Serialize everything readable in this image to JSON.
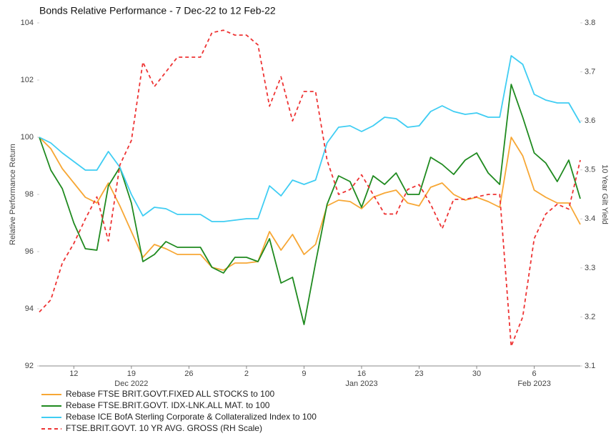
{
  "chart_data": {
    "type": "line",
    "title": "Bonds Relative Performance - 7 Dec-22 to 12 Feb-22",
    "y_label": "Relative Performance Return",
    "y2_label": "10 Year Gilt Yield",
    "x": [
      0,
      1,
      2,
      3,
      4,
      5,
      6,
      7,
      8,
      9,
      10,
      11,
      12,
      13,
      14,
      15,
      16,
      17,
      18,
      19,
      20,
      21,
      22,
      23,
      24,
      25,
      26,
      27,
      28,
      29,
      30,
      31,
      32,
      33,
      34,
      35,
      36,
      37,
      38,
      39,
      40,
      41,
      42,
      43,
      44,
      45,
      46,
      47
    ],
    "xlim": [
      0,
      47
    ],
    "xticks": [
      {
        "value": 3,
        "label": "12"
      },
      {
        "value": 8,
        "label": "19"
      },
      {
        "value": 13,
        "label": "26"
      },
      {
        "value": 18,
        "label": "2"
      },
      {
        "value": 23,
        "label": "9"
      },
      {
        "value": 28,
        "label": "16"
      },
      {
        "value": 33,
        "label": "23"
      },
      {
        "value": 38,
        "label": "30"
      },
      {
        "value": 43,
        "label": "6"
      }
    ],
    "x_period_labels": [
      {
        "value": 8,
        "label": "Dec 2022"
      },
      {
        "value": 28,
        "label": "Jan 2023"
      },
      {
        "value": 43,
        "label": "Feb 2023"
      }
    ],
    "ylim": [
      92,
      104
    ],
    "yticks": [
      92,
      94,
      96,
      98,
      100,
      102,
      104
    ],
    "y2lim": [
      3.1,
      3.8
    ],
    "y2ticks": [
      3.1,
      3.2,
      3.3,
      3.4,
      3.5,
      3.6,
      3.7,
      3.8
    ],
    "grid": false,
    "legend": "bottom-left",
    "series": [
      {
        "name": "Rebase FTSE BRIT.GOVT.FIXED ALL STOCKS to 100",
        "color": "#f7a735",
        "values": [
          100,
          99.6,
          98.9,
          98.4,
          97.9,
          97.7,
          98.4,
          97.6,
          96.7,
          95.8,
          96.25,
          96.1,
          95.9,
          95.9,
          95.9,
          95.45,
          95.35,
          95.6,
          95.6,
          95.65,
          96.7,
          96.05,
          96.6,
          95.9,
          96.25,
          97.6,
          97.8,
          97.75,
          97.5,
          97.9,
          98.05,
          98.15,
          97.7,
          97.6,
          98.25,
          98.4,
          98.0,
          97.8,
          97.9,
          97.75,
          97.55,
          100.0,
          99.35,
          98.15,
          97.9,
          97.7,
          97.7,
          96.95
        ]
      },
      {
        "name": "Rebase FTSE.BRIT.GOVT. IDX-LNK.ALL MAT. to 100",
        "color": "#1f8a1f",
        "values": [
          100,
          98.85,
          98.2,
          97.0,
          96.1,
          96.05,
          98.3,
          98.95,
          97.7,
          95.65,
          95.9,
          96.35,
          96.15,
          96.15,
          96.15,
          95.45,
          95.25,
          95.8,
          95.8,
          95.65,
          96.45,
          94.9,
          95.1,
          93.45,
          95.6,
          97.65,
          98.65,
          98.45,
          97.55,
          98.65,
          98.35,
          98.75,
          98.0,
          98.0,
          99.3,
          99.05,
          98.7,
          99.2,
          99.45,
          98.75,
          98.35,
          101.85,
          100.7,
          99.45,
          99.1,
          98.45,
          99.2,
          97.85
        ]
      },
      {
        "name": "Rebase ICE BofA Sterling Corporate & Collateralized Index to 100",
        "color": "#3fcdf3",
        "values": [
          100,
          99.8,
          99.45,
          99.15,
          98.85,
          98.85,
          99.5,
          98.95,
          98.0,
          97.25,
          97.55,
          97.5,
          97.3,
          97.3,
          97.3,
          97.05,
          97.05,
          97.1,
          97.15,
          97.15,
          98.3,
          97.95,
          98.5,
          98.35,
          98.5,
          99.8,
          100.35,
          100.4,
          100.2,
          100.4,
          100.7,
          100.65,
          100.35,
          100.4,
          100.9,
          101.1,
          100.9,
          100.8,
          100.85,
          100.7,
          100.7,
          102.85,
          102.55,
          101.5,
          101.3,
          101.2,
          101.2,
          100.5
        ]
      },
      {
        "name": "FTSE.BRIT.GOVT. 10 YR AVG. GROSS (RH Scale)",
        "color": "#ee3333",
        "axis": "y2",
        "dashed": true,
        "values": [
          3.21,
          3.235,
          3.31,
          3.35,
          3.4,
          3.445,
          3.355,
          3.51,
          3.56,
          3.72,
          3.67,
          3.7,
          3.73,
          3.73,
          3.73,
          3.78,
          3.785,
          3.775,
          3.775,
          3.755,
          3.63,
          3.69,
          3.6,
          3.66,
          3.66,
          3.52,
          3.45,
          3.46,
          3.49,
          3.45,
          3.41,
          3.41,
          3.46,
          3.47,
          3.43,
          3.38,
          3.44,
          3.44,
          3.445,
          3.45,
          3.45,
          3.14,
          3.2,
          3.36,
          3.41,
          3.43,
          3.42,
          3.52
        ]
      }
    ]
  }
}
